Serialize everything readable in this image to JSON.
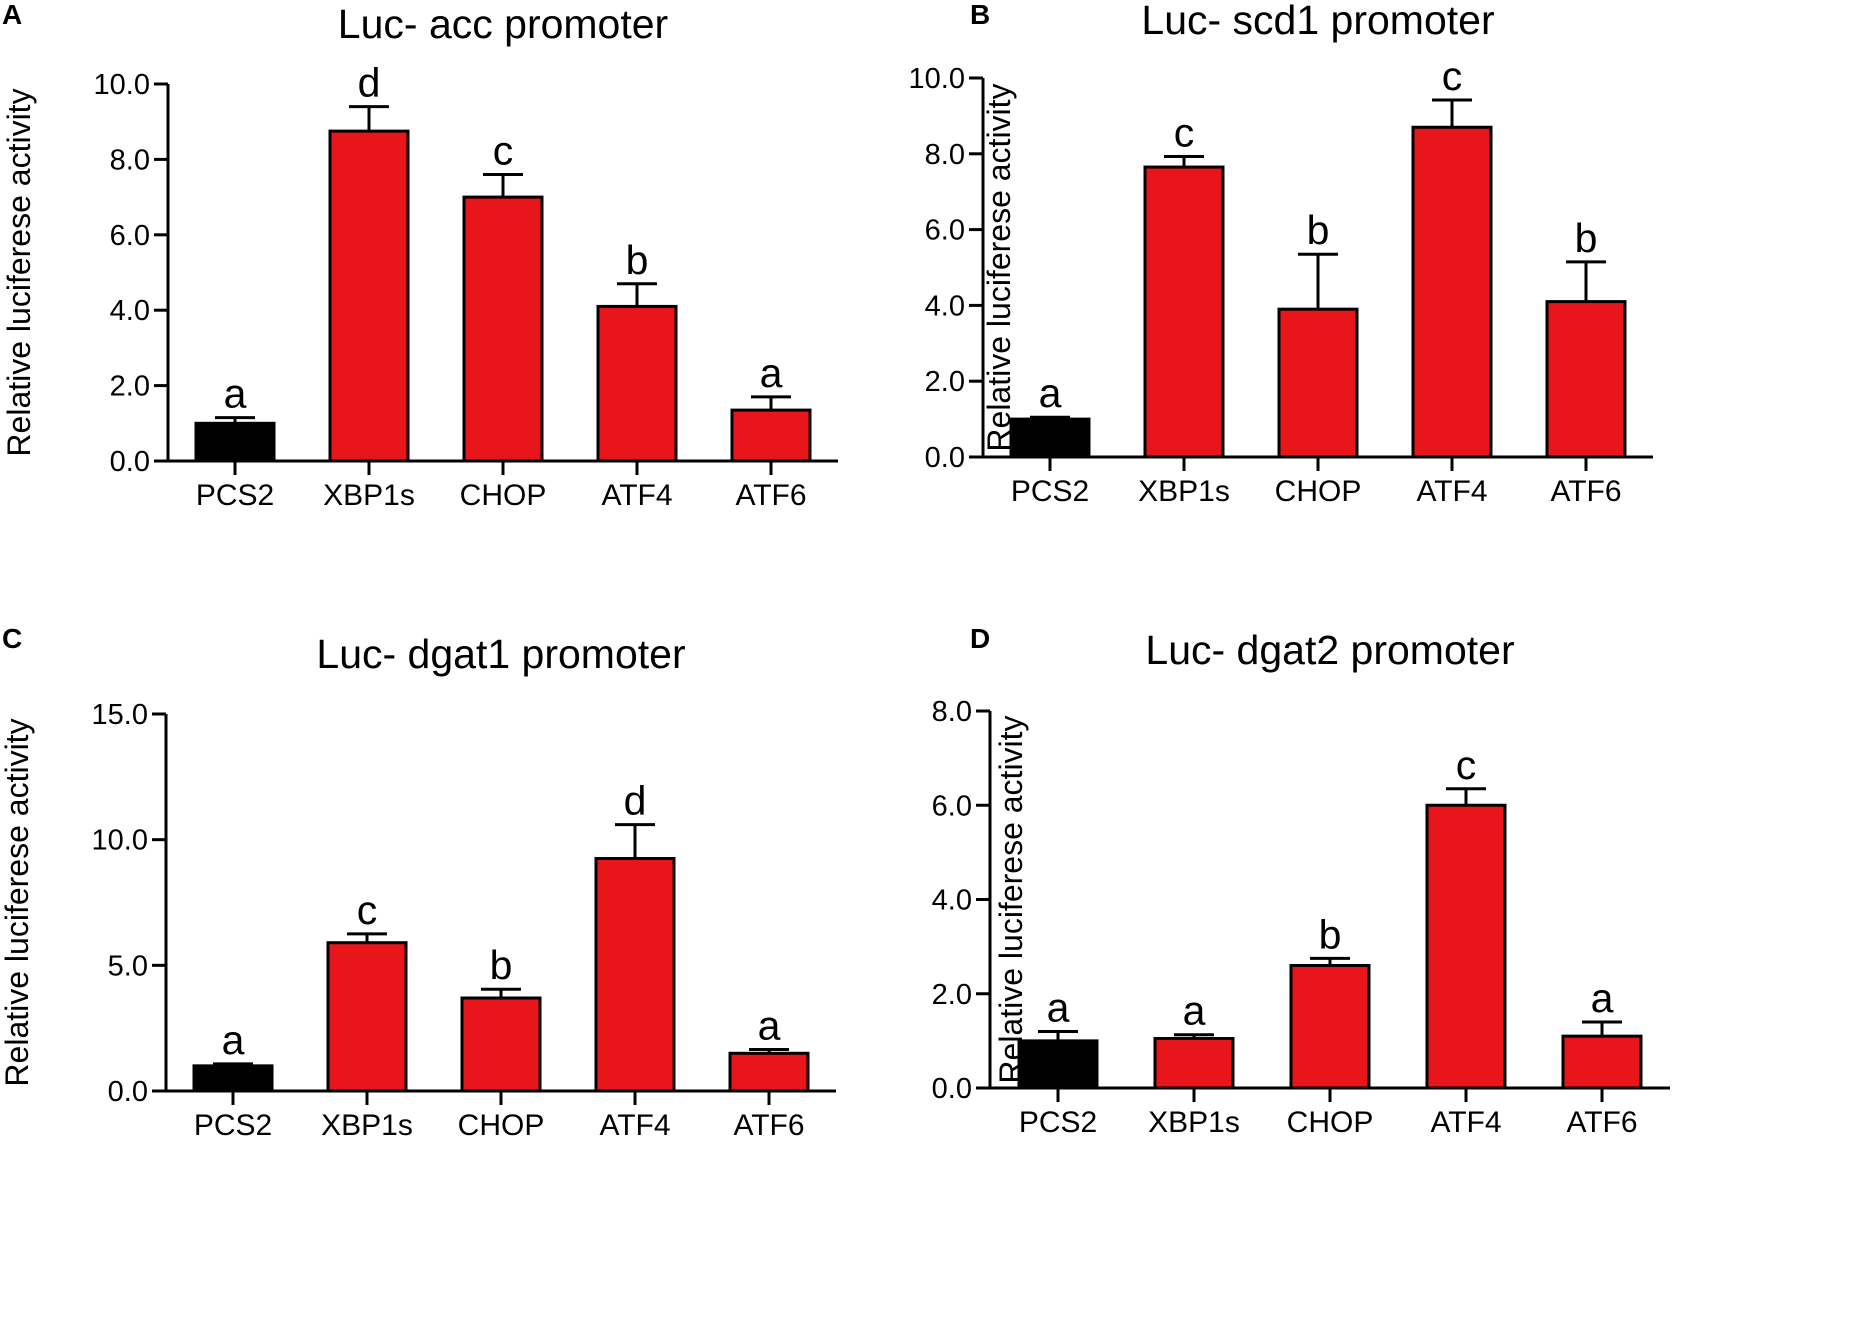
{
  "chart_data": [
    {
      "panel": "A",
      "type": "bar",
      "title": "Luc- acc  promoter",
      "ylabel": "Relative luciferese activity",
      "xlabel": "",
      "ylim": [
        0,
        10
      ],
      "yticks": [
        0,
        2,
        4,
        6,
        8,
        10
      ],
      "ytick_labels": [
        "0.0",
        "2.0",
        "4.0",
        "6.0",
        "8.0",
        "10.0"
      ],
      "categories": [
        "PCS2",
        "XBP1s",
        "CHOP",
        "ATF4",
        "ATF6"
      ],
      "values": [
        1.0,
        8.75,
        7.0,
        4.1,
        1.35
      ],
      "errors": [
        0.15,
        0.65,
        0.6,
        0.6,
        0.35
      ],
      "significance": [
        "a",
        "d",
        "c",
        "b",
        "a"
      ],
      "colors": [
        "#000000",
        "#e8161b",
        "#e8161b",
        "#e8161b",
        "#e8161b"
      ]
    },
    {
      "panel": "B",
      "type": "bar",
      "title": "Luc- scd1  promoter",
      "ylabel": "Relative luciferese activity",
      "xlabel": "",
      "ylim": [
        0,
        10
      ],
      "yticks": [
        0,
        2,
        4,
        6,
        8,
        10
      ],
      "ytick_labels": [
        "0.0",
        "2.0",
        "4.0",
        "6.0",
        "8.0",
        "10.0"
      ],
      "categories": [
        "PCS2",
        "XBP1s",
        "CHOP",
        "ATF4",
        "ATF6"
      ],
      "values": [
        1.0,
        7.65,
        3.9,
        8.7,
        4.1
      ],
      "errors": [
        0.05,
        0.28,
        1.45,
        0.72,
        1.05
      ],
      "significance": [
        "a",
        "c",
        "b",
        "c",
        "b"
      ],
      "colors": [
        "#000000",
        "#e8161b",
        "#e8161b",
        "#e8161b",
        "#e8161b"
      ]
    },
    {
      "panel": "C",
      "type": "bar",
      "title": "Luc- dgat1  promoter",
      "ylabel": "Relative luciferese activity",
      "xlabel": "",
      "ylim": [
        0,
        15
      ],
      "yticks": [
        0,
        5,
        10,
        15
      ],
      "ytick_labels": [
        "0.0",
        "5.0",
        "10.0",
        "15.0"
      ],
      "categories": [
        "PCS2",
        "XBP1s",
        "CHOP",
        "ATF4",
        "ATF6"
      ],
      "values": [
        1.0,
        5.9,
        3.7,
        9.25,
        1.5
      ],
      "errors": [
        0.08,
        0.35,
        0.35,
        1.35,
        0.15
      ],
      "significance": [
        "a",
        "c",
        "b",
        "d",
        "a"
      ],
      "colors": [
        "#000000",
        "#e8161b",
        "#e8161b",
        "#e8161b",
        "#e8161b"
      ]
    },
    {
      "panel": "D",
      "type": "bar",
      "title": "Luc- dgat2  promoter",
      "ylabel": "Relative luciferese activity",
      "xlabel": "",
      "ylim": [
        0,
        8
      ],
      "yticks": [
        0,
        2,
        4,
        6,
        8
      ],
      "ytick_labels": [
        "0.0",
        "2.0",
        "4.0",
        "6.0",
        "8.0"
      ],
      "categories": [
        "PCS2",
        "XBP1s",
        "CHOP",
        "ATF4",
        "ATF6"
      ],
      "values": [
        1.0,
        1.05,
        2.6,
        6.0,
        1.1
      ],
      "errors": [
        0.2,
        0.08,
        0.15,
        0.35,
        0.3
      ],
      "significance": [
        "a",
        "a",
        "b",
        "c",
        "a"
      ],
      "colors": [
        "#000000",
        "#e8161b",
        "#e8161b",
        "#e8161b",
        "#e8161b"
      ]
    }
  ]
}
